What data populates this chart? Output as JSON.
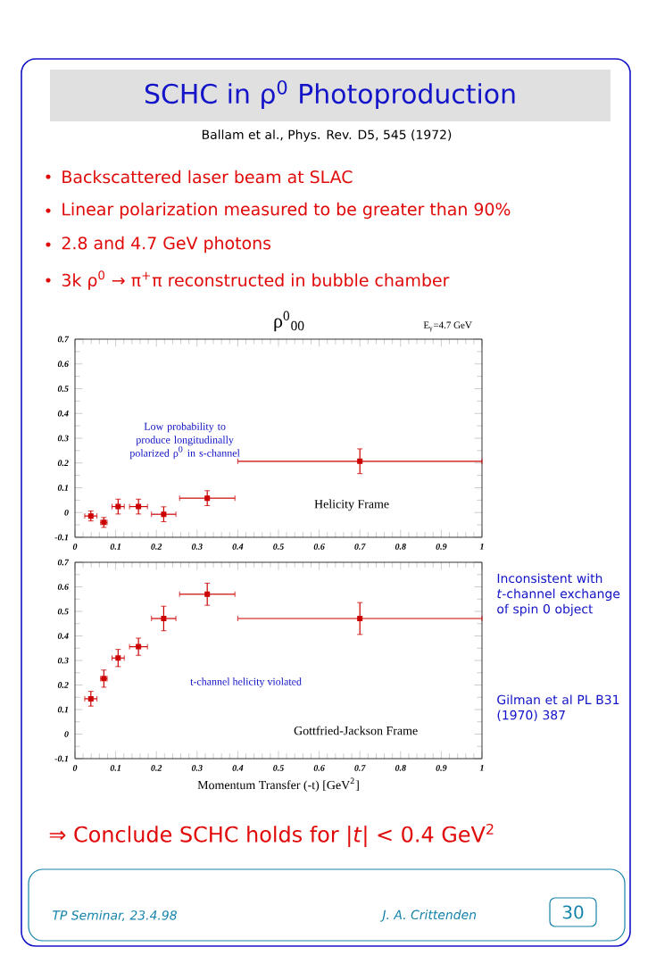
{
  "chart_data": [
    {
      "type": "scatter",
      "title": "SCHC in ρ$^{0}$ Photoproduction",
      "subtitle": "Ballam et al., Phys. Rev. D5, 545 (1972)",
      "annotations": [
        "Backscattered laser beam at SLAC",
        "Linear polarization measured to be greater than 90%",
        "2.8 and 4.7 GeV photons",
        "3k ρ$^{0}$ → π$^{+}$π   reconstructed in bubble chamber",
        "ρ$^{0}$$_{00}$",
        "E$_{γ}$=4.7 GeV",
        "Low probability to produce longitudinally polarized ρ$^{0}$ in s-channel",
        "Helicity Frame",
        "TP Seminar, 23.4.98",
        "J. A. Crittenden",
        "30"
      ],
      "x": [
        0.039,
        0.071,
        0.106,
        0.156,
        0.218,
        0.325,
        0.7
      ],
      "values": [
        -0.014,
        -0.04,
        0.024,
        0.024,
        -0.007,
        0.058,
        0.207
      ],
      "errors": [
        0.02,
        0.02,
        0.03,
        0.03,
        0.03,
        0.03,
        0.05
      ],
      "xerrors": [
        0.015,
        0.008,
        0.015,
        0.022,
        0.03,
        0.068,
        0.3
      ],
      "color": "#cc0000",
      "marker": "square",
      "xlim": [
        0,
        1
      ],
      "ylim": [
        -0.1,
        0.7
      ],
      "xticks": [
        0,
        0.1,
        0.2,
        0.3,
        0.4,
        0.5,
        0.6,
        0.7,
        0.8,
        0.9,
        1
      ],
      "yticks": [
        -0.1,
        0,
        0.1,
        0.2,
        0.3,
        0.4,
        0.5,
        0.6,
        0.7
      ]
    },
    {
      "type": "scatter",
      "xlabel": "Momentum Transfer (-t) [GeV$^{2}$]",
      "annotations": [
        "t-channel helicity violated",
        "Gottfried-Jackson Frame",
        "Inconsistent with *t*-channel exchange of spin 0 object",
        "Gilman et al PL B31 (1970) 387",
        "⇒ Conclude SCHC holds for |*t*| < 0.4 GeV$^{2}$"
      ],
      "x": [
        0.039,
        0.071,
        0.106,
        0.156,
        0.218,
        0.325,
        0.7
      ],
      "values": [
        0.144,
        0.226,
        0.31,
        0.356,
        0.471,
        0.57,
        0.471
      ],
      "errors": [
        0.03,
        0.035,
        0.035,
        0.035,
        0.05,
        0.045,
        0.065
      ],
      "xerrors": [
        0.015,
        0.008,
        0.015,
        0.022,
        0.03,
        0.068,
        0.3
      ],
      "color": "#cc0000",
      "marker": "square",
      "xlim": [
        0,
        1
      ],
      "ylim": [
        -0.1,
        0.7
      ],
      "xticks": [
        0,
        0.1,
        0.2,
        0.3,
        0.4,
        0.5,
        0.6,
        0.7,
        0.8,
        0.9,
        1
      ],
      "yticks": [
        -0.1,
        0,
        0.1,
        0.2,
        0.3,
        0.4,
        0.5,
        0.6,
        0.7
      ]
    }
  ]
}
